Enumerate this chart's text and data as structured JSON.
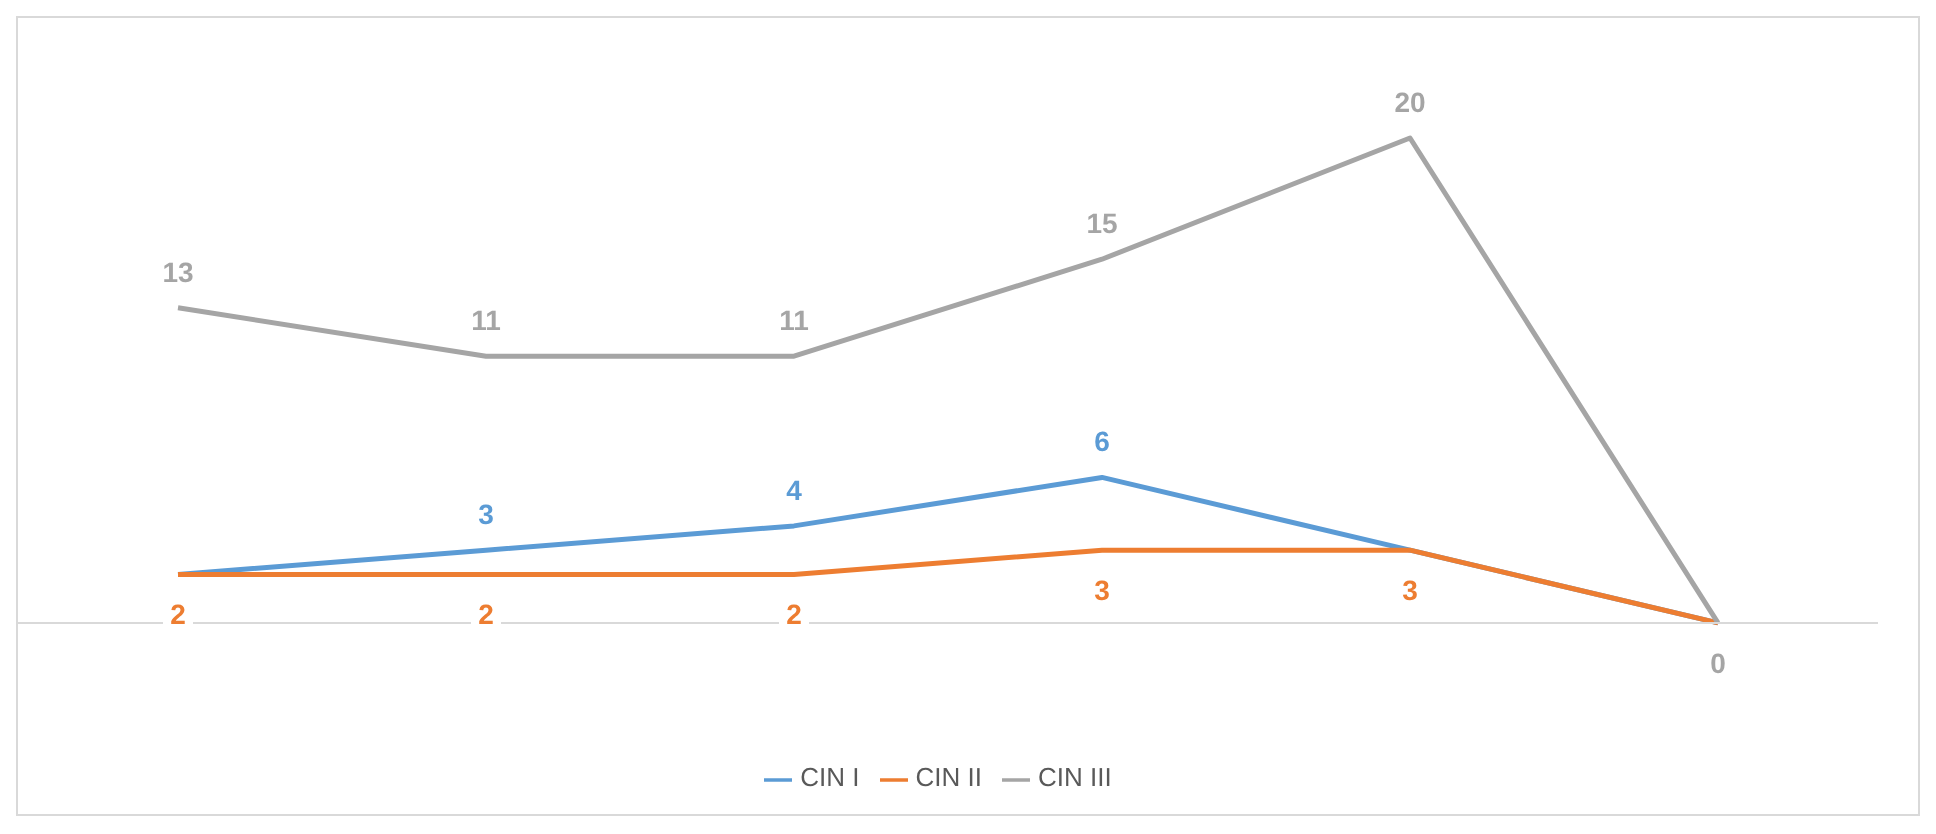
{
  "chart_data": {
    "type": "line",
    "categories": [
      null,
      null,
      null,
      null,
      null,
      null
    ],
    "series": [
      {
        "name": "CIN  I",
        "color": "#5b9bd5",
        "values": [
          2,
          3,
          4,
          6,
          3,
          0
        ],
        "value_labels": [
          null,
          "3",
          "4",
          "6",
          null,
          null
        ]
      },
      {
        "name": "CIN II",
        "color": "#ed7d31",
        "values": [
          2,
          2,
          2,
          3,
          3,
          0
        ],
        "value_labels": [
          "2",
          "2",
          "2",
          "3",
          "3",
          null
        ]
      },
      {
        "name": "CIN III",
        "color": "#a5a5a5",
        "values": [
          13,
          11,
          11,
          15,
          20,
          0
        ],
        "value_labels": [
          "13",
          "11",
          "11",
          "15",
          "20",
          "0"
        ]
      }
    ],
    "legend": "bottom",
    "line_style": "solid"
  }
}
